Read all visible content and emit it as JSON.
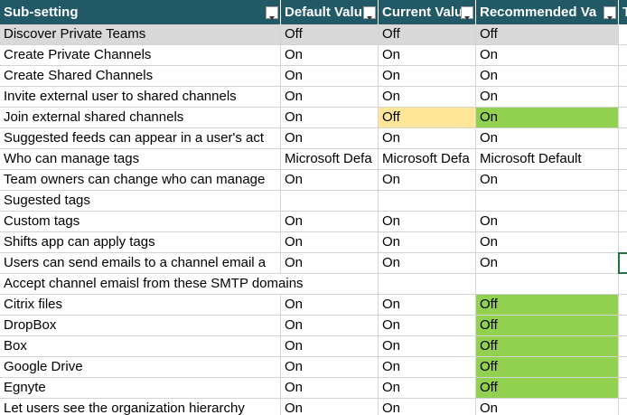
{
  "header": [
    "Sub-setting",
    "Default Valu",
    "Current Valu",
    "Recommended Va",
    "T"
  ],
  "rows": [
    [
      "Discover Private Teams",
      "Off",
      "Off",
      "Off"
    ],
    [
      "Create Private Channels",
      "On",
      "On",
      "On"
    ],
    [
      "Create Shared Channels",
      "On",
      "On",
      "On"
    ],
    [
      "Invite external user to shared channels",
      "On",
      "On",
      "On"
    ],
    [
      "Join external shared channels",
      "On",
      "Off",
      "On"
    ],
    [
      "Suggested feeds can appear in a user's act",
      "On",
      "On",
      "On"
    ],
    [
      "Who can manage tags",
      "Microsoft Defa",
      "Microsoft Defa",
      "Microsoft Default"
    ],
    [
      "Team owners can change who can manage",
      "On",
      "On",
      "On"
    ],
    [
      "Sugested tags"
    ],
    [
      "Custom tags",
      "On",
      "On",
      "On"
    ],
    [
      "Shifts app can apply tags",
      "On",
      "On",
      "On"
    ],
    [
      "Users can send emails to a channel email a",
      "On",
      "On",
      "On"
    ],
    [
      "Accept channel emaisl from these SMTP domains"
    ],
    [
      "Citrix files",
      "On",
      "On",
      "Off"
    ],
    [
      "DropBox",
      "On",
      "On",
      "Off"
    ],
    [
      "Box",
      "On",
      "On",
      "Off"
    ],
    [
      "Google Drive",
      "On",
      "On",
      "Off"
    ],
    [
      "Egnyte",
      "On",
      "On",
      "Off"
    ],
    [
      "Let users see the organization hierarchy",
      "On",
      "On",
      "On"
    ]
  ]
}
